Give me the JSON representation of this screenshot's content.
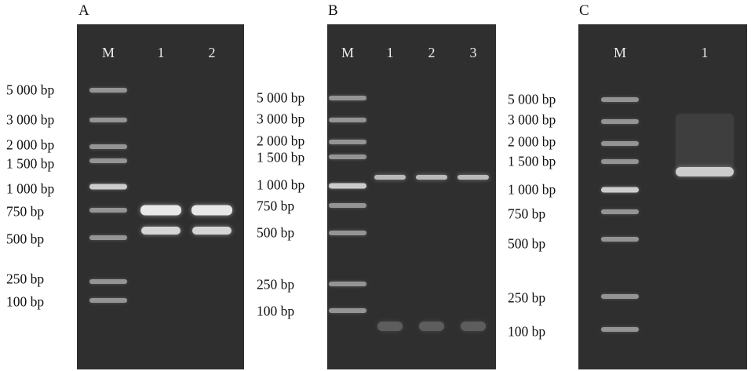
{
  "figure": {
    "panels": [
      {
        "letter": "A",
        "lanes": [
          "M",
          "1",
          "2"
        ],
        "marker_labels": [
          "5 000 bp",
          "3 000 bp",
          "2 000 bp",
          "1 500 bp",
          "1 000 bp",
          "750 bp",
          "500 bp",
          "250 bp",
          "100 bp"
        ]
      },
      {
        "letter": "B",
        "lanes": [
          "M",
          "1",
          "2",
          "3"
        ],
        "marker_labels": [
          "5 000 bp",
          "3 000 bp",
          "2 000 bp",
          "1 500 bp",
          "1 000 bp",
          "750 bp",
          "500 bp",
          "250 bp",
          "100 bp"
        ]
      },
      {
        "letter": "C",
        "lanes": [
          "M",
          "1"
        ],
        "marker_labels": [
          "5 000 bp",
          "3 000 bp",
          "2 000 bp",
          "1 500 bp",
          "1 000 bp",
          "750 bp",
          "500 bp",
          "250 bp",
          "100 bp"
        ]
      }
    ],
    "colors": {
      "gel_background": "#2f2f2f",
      "band": "#e8e8e8",
      "text": "#111111"
    }
  }
}
